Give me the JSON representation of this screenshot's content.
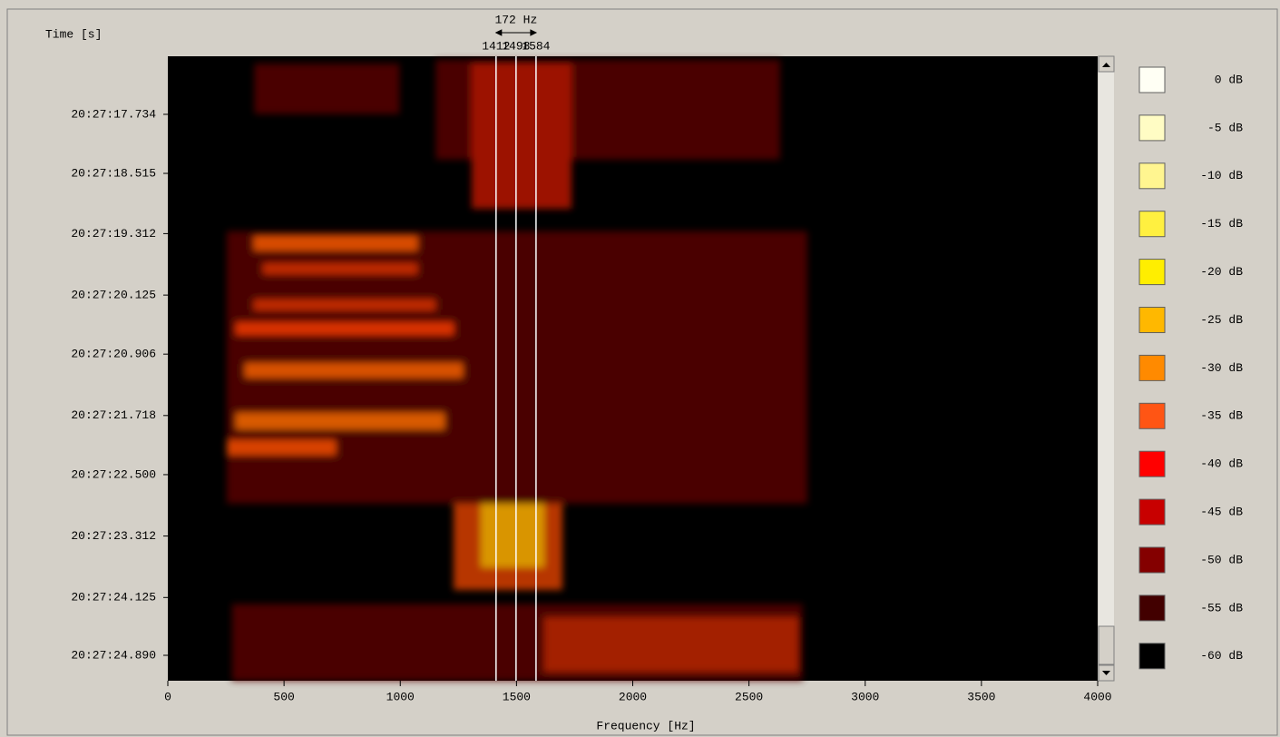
{
  "chart_data": {
    "type": "spectrogram",
    "xlabel": "Frequency [Hz]",
    "ylabel": "Time [s]",
    "xlim": [
      0,
      4000
    ],
    "xticks": [
      0,
      500,
      1000,
      1500,
      2000,
      2500,
      3000,
      3500,
      4000
    ],
    "ylim": [
      73636.966,
      73645.226
    ],
    "yticks": [
      {
        "value": 73637.734,
        "label": "20:27:17.734"
      },
      {
        "value": 73638.515,
        "label": "20:27:18.515"
      },
      {
        "value": 73639.312,
        "label": "20:27:19.312"
      },
      {
        "value": 73640.125,
        "label": "20:27:20.125"
      },
      {
        "value": 73640.906,
        "label": "20:27:20.906"
      },
      {
        "value": 73641.718,
        "label": "20:27:21.718"
      },
      {
        "value": 73642.5,
        "label": "20:27:22.500"
      },
      {
        "value": 73643.312,
        "label": "20:27:23.312"
      },
      {
        "value": 73644.125,
        "label": "20:27:24.125"
      },
      {
        "value": 73644.89,
        "label": "20:27:24.890"
      }
    ],
    "markers": [
      1412,
      1498,
      1584
    ],
    "bandwidth": {
      "value": 172,
      "label": "172 Hz"
    },
    "colorbar": [
      {
        "value": 0,
        "label": "0 dB",
        "color": "#fffff4"
      },
      {
        "value": -5,
        "label": "-5 dB",
        "color": "#fffcc4"
      },
      {
        "value": -10,
        "label": "-10 dB",
        "color": "#fff590"
      },
      {
        "value": -15,
        "label": "-15 dB",
        "color": "#fff040"
      },
      {
        "value": -20,
        "label": "-20 dB",
        "color": "#ffee00"
      },
      {
        "value": -25,
        "label": "-25 dB",
        "color": "#ffb800"
      },
      {
        "value": -30,
        "label": "-30 dB",
        "color": "#ff8a00"
      },
      {
        "value": -35,
        "label": "-35 dB",
        "color": "#ff5514"
      },
      {
        "value": -40,
        "label": "-40 dB",
        "color": "#ff0000"
      },
      {
        "value": -45,
        "label": "-45 dB",
        "color": "#c80000"
      },
      {
        "value": -50,
        "label": "-50 dB",
        "color": "#840000"
      },
      {
        "value": -55,
        "label": "-55 dB",
        "color": "#420000"
      },
      {
        "value": -60,
        "label": "-60 dB",
        "color": "#000000"
      }
    ]
  }
}
